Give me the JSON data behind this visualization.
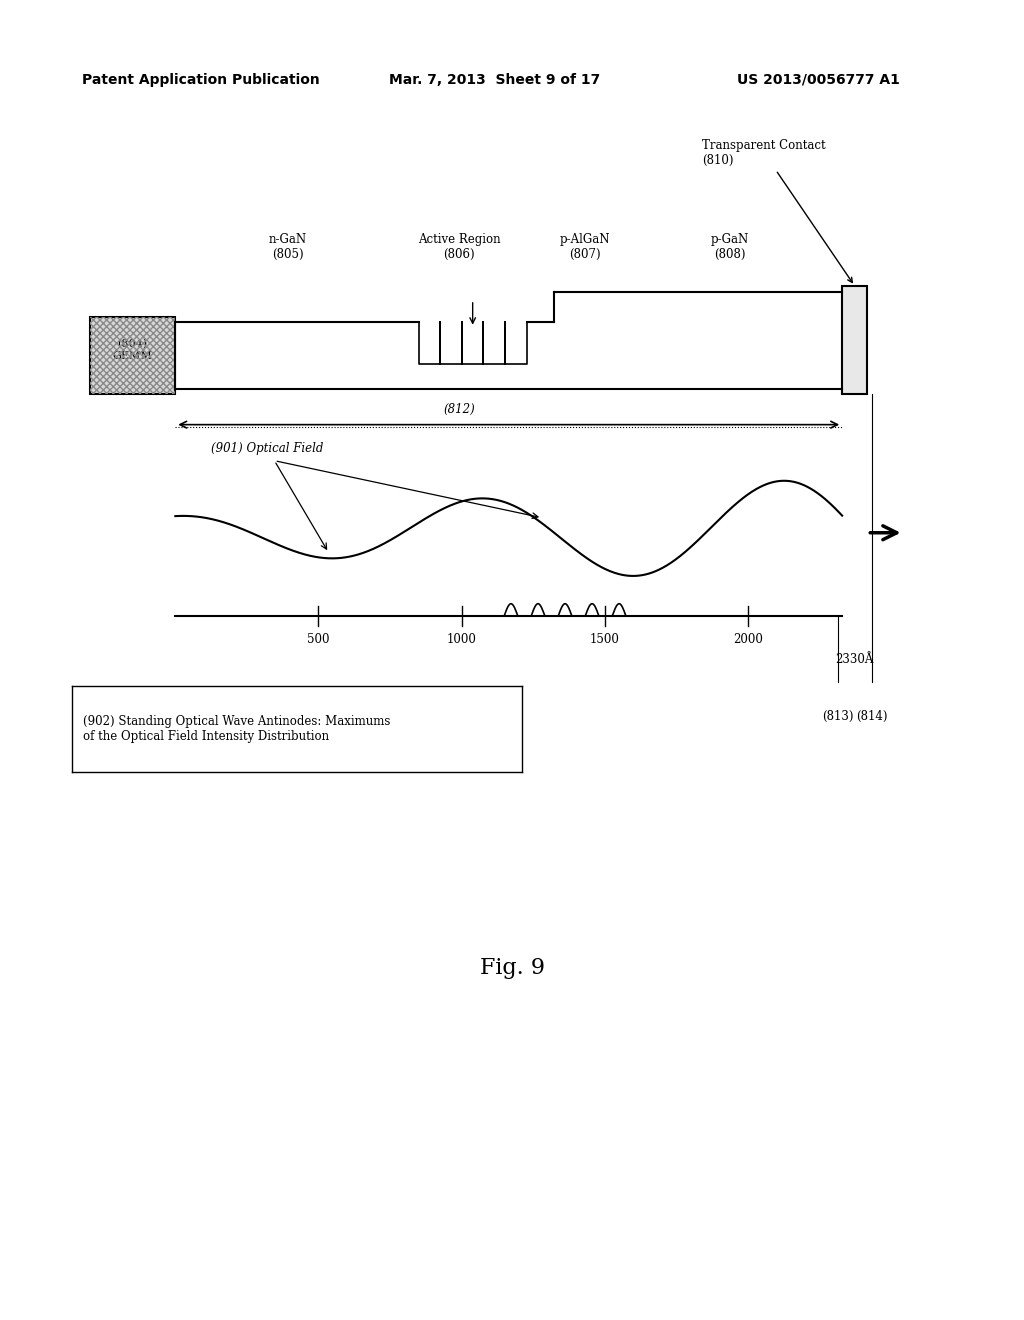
{
  "header_left": "Patent Application Publication",
  "header_mid": "Mar. 7, 2013  Sheet 9 of 17",
  "header_right": "US 2013/0056777 A1",
  "fig_label": "Fig. 9",
  "bg_color": "#ffffff",
  "diagram": {
    "gemm_label": "(804)\nGEMM",
    "n_gan_label": "n-GaN\n(805)",
    "active_region_label": "Active Region\n(806)",
    "p_algan_label": "p-AlGaN\n(807)",
    "p_gan_label": "p-GaN\n(808)",
    "transparent_contact_label": "Transparent Contact\n(810)",
    "label_812": "(812)",
    "label_813": "(813)",
    "label_814": "(814)",
    "label_2330": "2330Å",
    "optical_field_label": "(901) Optical Field",
    "standing_wave_label": "(902) Standing Optical Wave Antinodes: Maximums\nof the Optical Field Intensity Distribution",
    "x_ticks": [
      500,
      1000,
      1500,
      2000
    ]
  }
}
